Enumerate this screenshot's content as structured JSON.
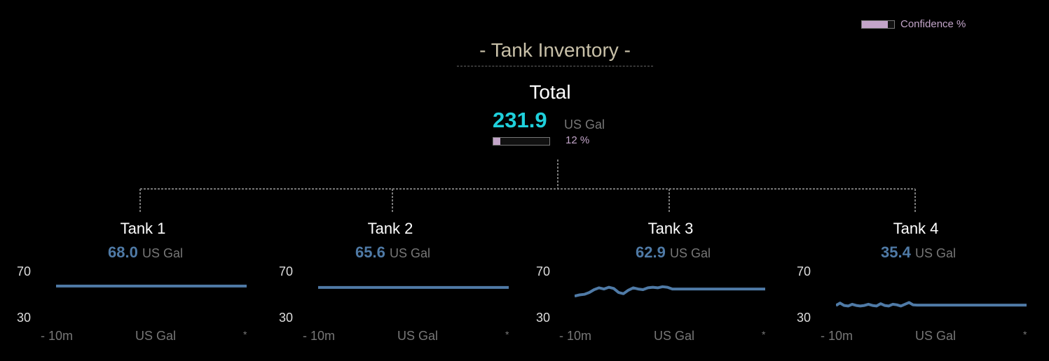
{
  "legend": {
    "label": "Confidence %",
    "color": "#c3a5c9"
  },
  "title": "-  Tank Inventory  -",
  "total": {
    "label": "Total",
    "value": "231.9",
    "unit": "US Gal",
    "confidence_pct": 12,
    "confidence_label": "12 %"
  },
  "colors": {
    "total": "#1fd0dc",
    "tank": "#4f7aa6"
  },
  "tanks": [
    {
      "name": "Tank 1",
      "value": "68.0",
      "unit": "US Gal",
      "y_max": "70",
      "y_min": "30",
      "x_start": "- 10m",
      "x_unit": "US Gal",
      "x_end": "*",
      "series": [
        57.5,
        57.5,
        57.5,
        57.5,
        57.5,
        57.5,
        57.5,
        57.5,
        57.5,
        57.5
      ]
    },
    {
      "name": "Tank 2",
      "value": "65.6",
      "unit": "US Gal",
      "y_max": "70",
      "y_min": "30",
      "x_start": "- 10m",
      "x_unit": "US Gal",
      "x_end": "*",
      "series": [
        56.3,
        56.3,
        56.3,
        56.3,
        56.3,
        56.3,
        56.3,
        56.3,
        56.3,
        56.3
      ]
    },
    {
      "name": "Tank 3",
      "value": "62.9",
      "unit": "US Gal",
      "y_max": "70",
      "y_min": "30",
      "x_start": "- 10m",
      "x_unit": "US Gal",
      "x_end": "*",
      "series": [
        49,
        50,
        50.5,
        52,
        54.5,
        56,
        55,
        56.5,
        55.5,
        52,
        51,
        54,
        56,
        55,
        54.5,
        56,
        56.5,
        56,
        57,
        56.5,
        55,
        55,
        55,
        55,
        55,
        55,
        55,
        55,
        55,
        55,
        55,
        55,
        55,
        55,
        55,
        55,
        55,
        55,
        55,
        55
      ]
    },
    {
      "name": "Tank 4",
      "value": "35.4",
      "unit": "US Gal",
      "y_max": "70",
      "y_min": "30",
      "x_start": "- 10m",
      "x_unit": "US Gal",
      "x_end": "*",
      "series": [
        41,
        43,
        41,
        40.5,
        42,
        41,
        40.5,
        41,
        42,
        41,
        40.5,
        42.5,
        41,
        40.5,
        42,
        41.5,
        40.5,
        42,
        43.5,
        41.5,
        41.3,
        41.3,
        41.3,
        41.3,
        41.3,
        41.3,
        41.3,
        41.3,
        41.3,
        41.3,
        41.3,
        41.3,
        41.3,
        41.3,
        41.3,
        41.3,
        41.3,
        41.3,
        41.3,
        41.3,
        41.3,
        41.3,
        41.3,
        41.3,
        41.3,
        41.3,
        41.3,
        41.3
      ]
    }
  ]
}
